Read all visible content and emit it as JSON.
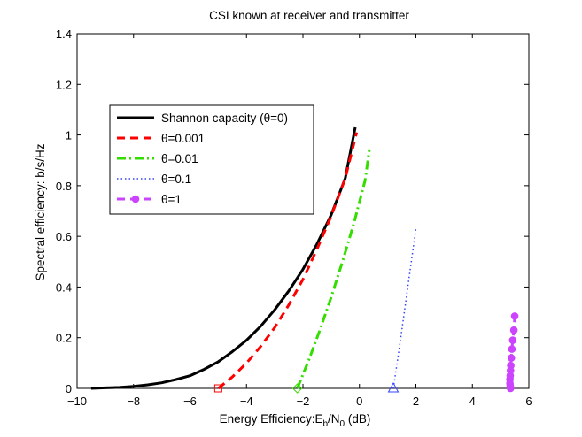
{
  "chart_data": {
    "type": "line",
    "title": "CSI known at receiver and transmitter",
    "xlabel": {
      "main": "Energy Efficiency:E",
      "sub1": "b",
      "mid": "/N",
      "sub2": "0",
      "tail": " (dB)"
    },
    "ylabel": "Spectral efficiency: b/s/Hz",
    "xlim": [
      -10,
      6
    ],
    "ylim": [
      0,
      1.4
    ],
    "xticks": [
      -10,
      -8,
      -6,
      -4,
      -2,
      0,
      2,
      4,
      6
    ],
    "xtick_labels": [
      "−10",
      "−8",
      "−6",
      "−4",
      "−2",
      "0",
      "2",
      "4",
      "6"
    ],
    "yticks": [
      0,
      0.2,
      0.4,
      0.6,
      0.8,
      1,
      1.2,
      1.4
    ],
    "ytick_labels": [
      "0",
      "0.2",
      "0.4",
      "0.6",
      "0.8",
      "1",
      "1.2",
      "1.4"
    ],
    "legend_position": "upper-left",
    "series": [
      {
        "name": "Shannon capacity (θ=0)",
        "color": "#000000",
        "style": "solid",
        "marker": "none",
        "x": [
          -9.5,
          -9.0,
          -8.5,
          -8.0,
          -7.5,
          -7.0,
          -6.5,
          -6.0,
          -5.5,
          -5.0,
          -4.5,
          -4.0,
          -3.5,
          -3.0,
          -2.5,
          -2.0,
          -1.5,
          -1.0,
          -0.5,
          -0.15
        ],
        "y": [
          0.0,
          0.002,
          0.004,
          0.008,
          0.014,
          0.022,
          0.035,
          0.05,
          0.075,
          0.105,
          0.145,
          0.19,
          0.245,
          0.31,
          0.385,
          0.47,
          0.57,
          0.685,
          0.83,
          1.03
        ]
      },
      {
        "name": "θ=0.001",
        "color": "#ff0000",
        "style": "dashed",
        "marker": "square-start",
        "x": [
          -5.0,
          -4.5,
          -4.0,
          -3.5,
          -3.0,
          -2.5,
          -2.0,
          -1.5,
          -1.0,
          -0.5,
          -0.1
        ],
        "y": [
          0.0,
          0.045,
          0.1,
          0.165,
          0.24,
          0.33,
          0.43,
          0.55,
          0.68,
          0.83,
          1.01
        ]
      },
      {
        "name": "θ=0.01",
        "color": "#33dd00",
        "style": "dashdot",
        "marker": "diamond-start",
        "x": [
          -2.2,
          -1.8,
          -1.4,
          -1.0,
          -0.6,
          -0.2,
          0.2,
          0.35
        ],
        "y": [
          0.0,
          0.11,
          0.23,
          0.36,
          0.5,
          0.65,
          0.82,
          0.94
        ]
      },
      {
        "name": "θ=0.1",
        "color": "#3344ff",
        "style": "dotted",
        "marker": "triangle-start",
        "x": [
          1.2,
          1.4,
          1.6,
          1.8,
          2.0
        ],
        "y": [
          0.0,
          0.15,
          0.31,
          0.47,
          0.63
        ]
      },
      {
        "name": "θ=1",
        "color": "#cc44ff",
        "style": "dashed",
        "marker": "circle",
        "x": [
          5.35,
          5.34,
          5.33,
          5.33,
          5.34,
          5.35,
          5.36,
          5.38,
          5.4,
          5.43,
          5.47,
          5.5
        ],
        "y": [
          0.0,
          0.01,
          0.02,
          0.035,
          0.05,
          0.07,
          0.09,
          0.12,
          0.155,
          0.19,
          0.23,
          0.285
        ]
      }
    ]
  }
}
